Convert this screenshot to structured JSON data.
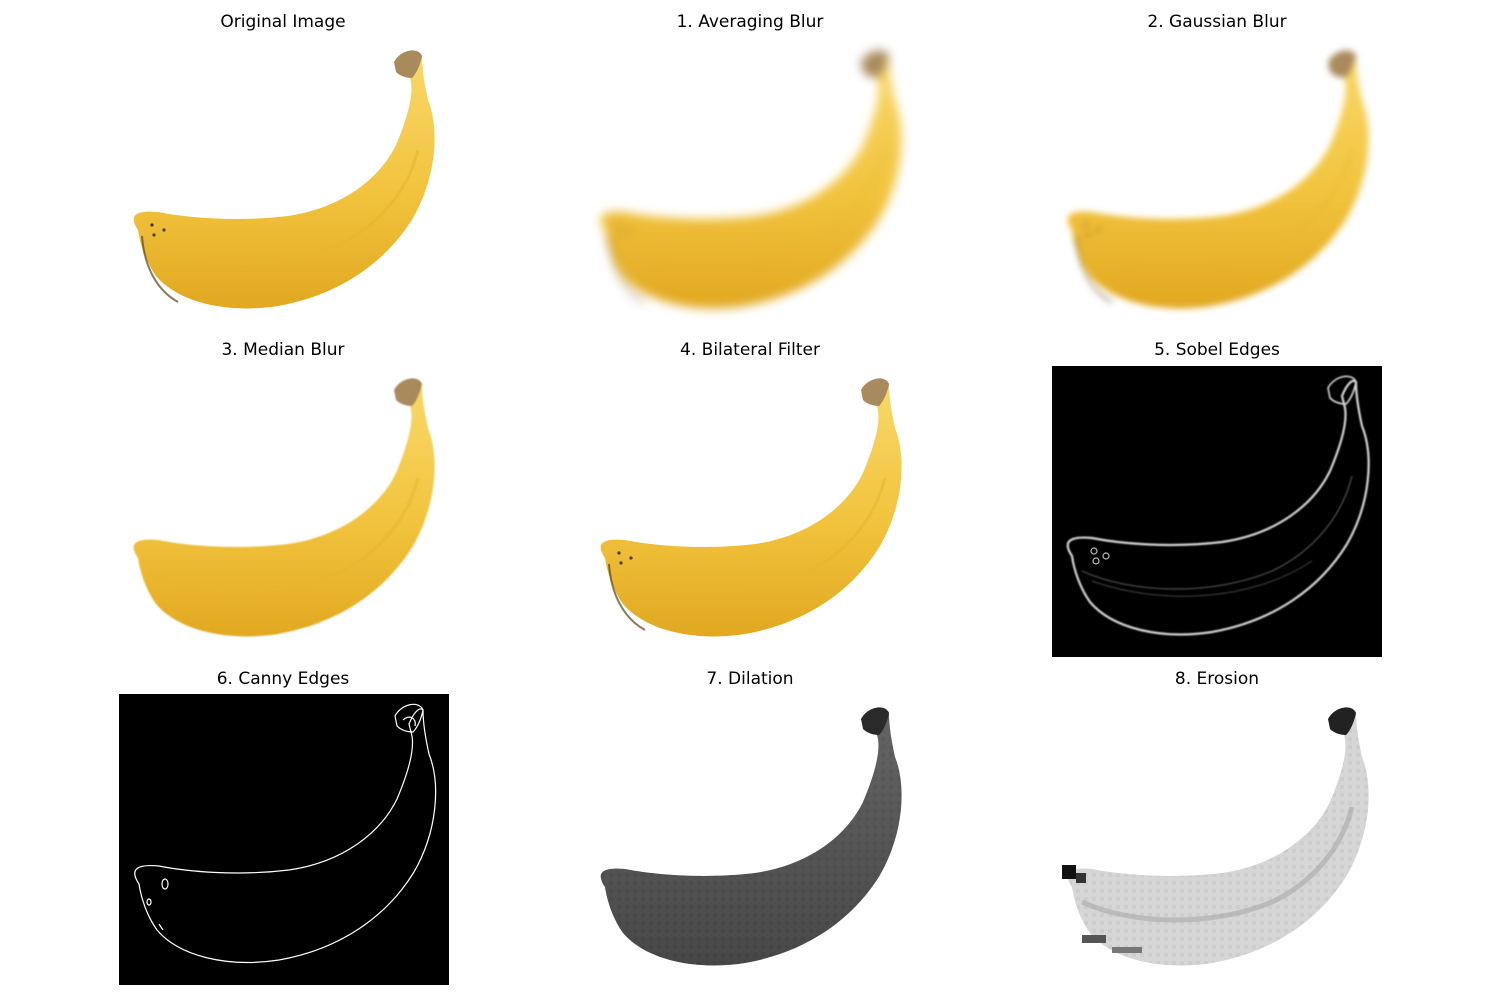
{
  "panels": [
    {
      "title": "Original Image",
      "style": "original"
    },
    {
      "title": "1. Averaging Blur",
      "style": "avgblur"
    },
    {
      "title": "2. Gaussian Blur",
      "style": "gaussblur"
    },
    {
      "title": "3. Median Blur",
      "style": "median"
    },
    {
      "title": "4. Bilateral Filter",
      "style": "bilateral"
    },
    {
      "title": "5. Sobel Edges",
      "style": "sobel"
    },
    {
      "title": "6. Canny Edges",
      "style": "canny"
    },
    {
      "title": "7. Dilation",
      "style": "dilation"
    },
    {
      "title": "8. Erosion",
      "style": "erosion"
    }
  ],
  "colors": {
    "banana": "#f2c33d",
    "banana_dark": "#e1a820",
    "banana_light": "#f8d86a",
    "stem_tip": "#a88a5c",
    "edge_bg": "#000000",
    "edge_line": "#ffffff"
  }
}
